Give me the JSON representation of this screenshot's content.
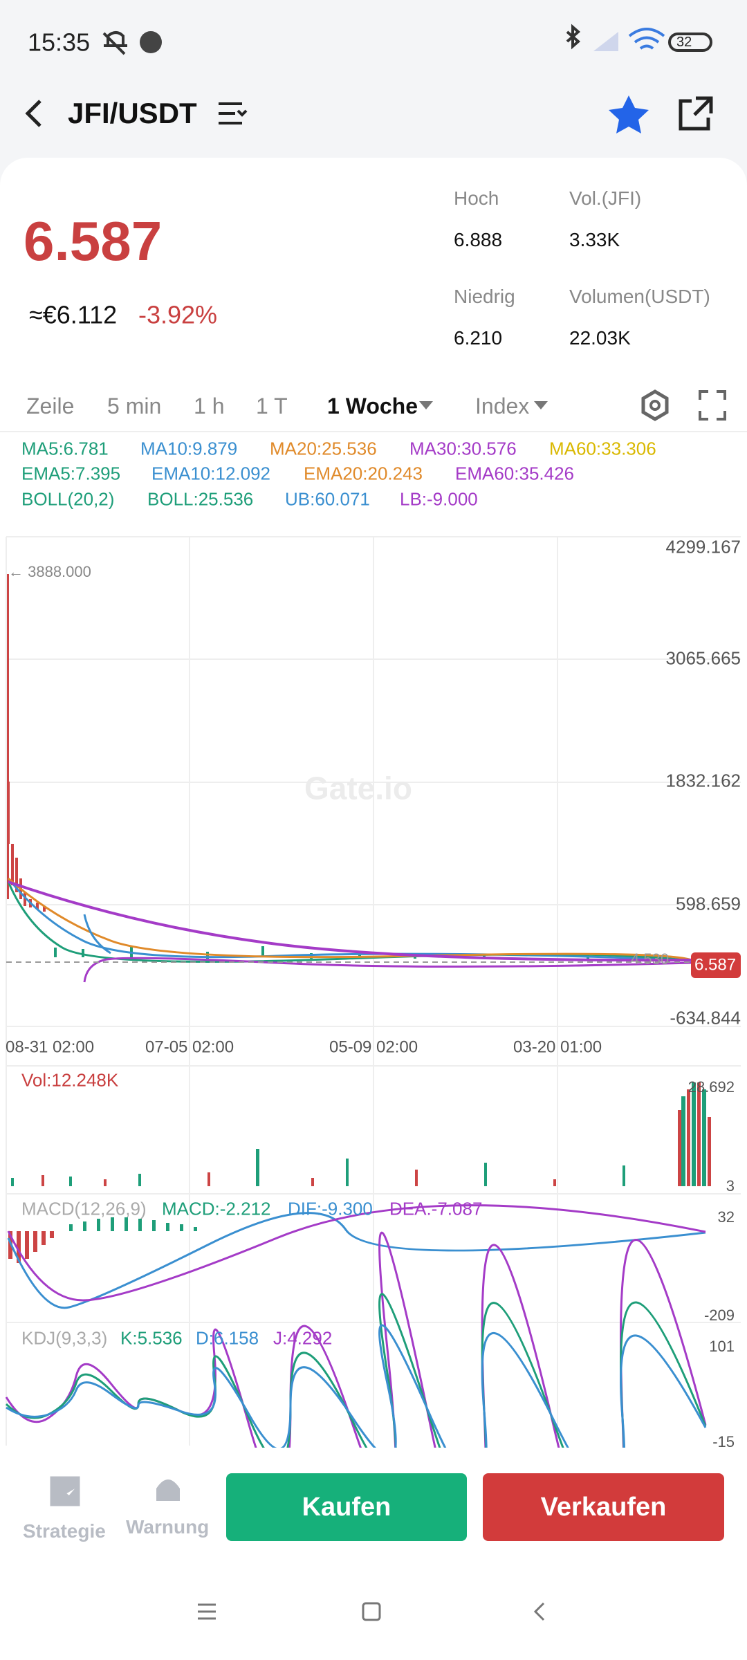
{
  "status_bar": {
    "time": "15:35",
    "battery": "32"
  },
  "header": {
    "pair": "JFI/USDT"
  },
  "price": {
    "last": "6.587",
    "fiat": "≈€6.112",
    "change": "-3.92%"
  },
  "stats": [
    {
      "label": "Hoch",
      "value": "6.888"
    },
    {
      "label": "Vol.(JFI)",
      "value": "3.33K"
    },
    {
      "label": "Niedrig",
      "value": "6.210"
    },
    {
      "label": "Volumen(USDT)",
      "value": "22.03K"
    }
  ],
  "tabs": [
    "Zeile",
    "5 min",
    "1 h",
    "1 T",
    "1 Woche",
    "Index"
  ],
  "indicators": [
    [
      {
        "text": "MA5:6.781",
        "color": "#1e9e79"
      },
      {
        "text": "MA10:9.879",
        "color": "#3a8fd0"
      },
      {
        "text": "MA20:25.536",
        "color": "#e08a2a"
      },
      {
        "text": "MA30:30.576",
        "color": "#a43bc7"
      },
      {
        "text": "MA60:33.306",
        "color": "#d9b800"
      }
    ],
    [
      {
        "text": "EMA5:7.395",
        "color": "#1e9e79"
      },
      {
        "text": "EMA10:12.092",
        "color": "#3a8fd0"
      },
      {
        "text": "EMA20:20.243",
        "color": "#e08a2a"
      },
      {
        "text": "EMA60:35.426",
        "color": "#a43bc7"
      }
    ],
    [
      {
        "text": "BOLL(20,2)",
        "color": "#1e9e79"
      },
      {
        "text": "BOLL:25.536",
        "color": "#1e9e79"
      },
      {
        "text": "UB:60.071",
        "color": "#3a8fd0"
      },
      {
        "text": "LB:-9.000",
        "color": "#a43bc7"
      }
    ]
  ],
  "main_chart": {
    "y_labels": [
      "4299.167",
      "3065.665",
      "1832.162",
      "598.659",
      "-634.844"
    ],
    "max_label": "← 3888.000",
    "line_label": "4.530",
    "last_price": "6.587",
    "x_labels": [
      "08-31 02:00",
      "07-05 02:00",
      "05-09 02:00",
      "03-20 01:00"
    ],
    "watermark": "Gate.io"
  },
  "volume": {
    "label": "Vol:12.248K",
    "max": "28.692",
    "min": "3"
  },
  "macd": {
    "labels": [
      {
        "text": "MACD(12,26,9)",
        "color": "#aaaaaa"
      },
      {
        "text": "MACD:-2.212",
        "color": "#1e9e79"
      },
      {
        "text": "DIF:-9.300",
        "color": "#3a8fd0"
      },
      {
        "text": "DEA:-7.087",
        "color": "#a43bc7"
      }
    ],
    "max": "32",
    "min": "-209"
  },
  "kdj": {
    "labels": [
      {
        "text": "KDJ(9,3,3)",
        "color": "#aaaaaa"
      },
      {
        "text": "K:5.536",
        "color": "#1e9e79"
      },
      {
        "text": "D:6.158",
        "color": "#3a8fd0"
      },
      {
        "text": "J:4.292",
        "color": "#a43bc7"
      }
    ],
    "max": "101",
    "min": "-15"
  },
  "bottom_bar": {
    "strategy": "Strategie",
    "alert": "Warnung",
    "buy": "Kaufen",
    "sell": "Verkaufen"
  }
}
